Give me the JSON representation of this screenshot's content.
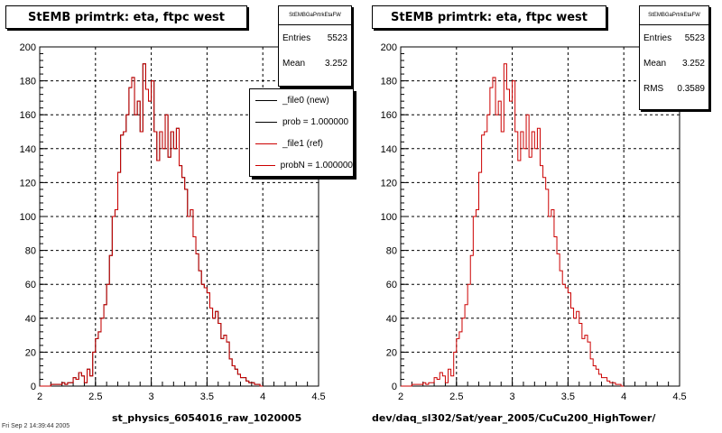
{
  "chart_data": [
    {
      "type": "histogram",
      "title": "StEMB primtrk: eta, ftpc west",
      "xlabel": "st_physics_6054016_raw_1020005",
      "xlim": [
        2,
        4.5
      ],
      "ylim": [
        0,
        200
      ],
      "xticks": [
        "2",
        "2.5",
        "3",
        "3.5",
        "4",
        "4.5"
      ],
      "yticks": [
        "0",
        "20",
        "40",
        "60",
        "80",
        "100",
        "120",
        "140",
        "160",
        "180",
        "200"
      ],
      "grid": true,
      "stats": {
        "name": "StEMBGaPrtrkEtaFW",
        "entries_label": "Entries",
        "entries": "5523",
        "mean_label": "Mean",
        "mean": "3.252"
      },
      "legend": [
        {
          "label": "_file0 (new)",
          "color": "#000000"
        },
        {
          "label": "prob = 1.000000",
          "color": "#000000"
        },
        {
          "label": "_file1 (ref)",
          "color": "#cc0000"
        },
        {
          "label": "probN = 1.000000",
          "color": "#cc0000"
        }
      ],
      "bin_start": 2.0,
      "bin_width": 0.025,
      "series": [
        {
          "name": "_file0 (new)",
          "color": "#000000",
          "values": [
            0,
            0,
            0,
            0,
            1,
            1,
            1,
            1,
            2,
            1,
            2,
            2,
            5,
            4,
            8,
            6,
            2,
            10,
            6,
            20,
            28,
            32,
            40,
            48,
            60,
            77,
            100,
            104,
            126,
            148,
            150,
            160,
            176,
            182,
            160,
            168,
            150,
            190,
            175,
            168,
            180,
            150,
            133,
            150,
            140,
            160,
            135,
            150,
            140,
            152,
            130,
            123,
            116,
            100,
            104,
            88,
            78,
            68,
            60,
            58,
            55,
            46,
            40,
            44,
            37,
            28,
            30,
            26,
            16,
            12,
            10,
            7,
            5,
            5,
            3,
            2,
            2,
            1,
            1,
            0
          ]
        },
        {
          "name": "_file1 (ref)",
          "color": "#cc0000",
          "values": [
            0,
            0,
            0,
            0,
            1,
            1,
            1,
            1,
            2,
            1,
            2,
            2,
            5,
            4,
            8,
            6,
            2,
            10,
            6,
            20,
            28,
            32,
            40,
            48,
            60,
            77,
            100,
            104,
            126,
            148,
            150,
            160,
            176,
            182,
            160,
            168,
            150,
            190,
            175,
            168,
            180,
            150,
            133,
            150,
            140,
            160,
            135,
            150,
            140,
            152,
            130,
            123,
            116,
            100,
            104,
            88,
            78,
            68,
            60,
            58,
            55,
            46,
            40,
            44,
            37,
            28,
            30,
            26,
            16,
            12,
            10,
            7,
            5,
            5,
            3,
            2,
            2,
            1,
            1,
            0
          ]
        }
      ]
    },
    {
      "type": "histogram",
      "title": "StEMB primtrk: eta, ftpc west",
      "xlabel": "dev/daq_sl302/Sat/year_2005/CuCu200_HighTower/",
      "xlim": [
        2,
        4.5
      ],
      "ylim": [
        0,
        200
      ],
      "xticks": [
        "2",
        "2.5",
        "3",
        "3.5",
        "4",
        "4.5"
      ],
      "yticks": [
        "0",
        "20",
        "40",
        "60",
        "80",
        "100",
        "120",
        "140",
        "160",
        "180",
        "200"
      ],
      "grid": true,
      "stats": {
        "name": "StEMBGaPrtrkEtaFW",
        "entries_label": "Entries",
        "entries": "5523",
        "mean_label": "Mean",
        "mean": "3.252",
        "rms_label": "RMS",
        "rms": "0.3589"
      },
      "bin_start": 2.0,
      "bin_width": 0.025,
      "series": [
        {
          "name": "ref",
          "color": "#cc0000",
          "values": [
            0,
            0,
            0,
            0,
            1,
            1,
            1,
            1,
            2,
            1,
            2,
            2,
            5,
            4,
            8,
            6,
            2,
            10,
            6,
            20,
            28,
            32,
            40,
            48,
            60,
            77,
            100,
            104,
            126,
            148,
            150,
            160,
            176,
            182,
            160,
            168,
            150,
            190,
            175,
            168,
            180,
            150,
            133,
            150,
            140,
            160,
            135,
            150,
            140,
            152,
            130,
            123,
            116,
            100,
            104,
            88,
            78,
            68,
            60,
            58,
            55,
            46,
            40,
            44,
            37,
            28,
            30,
            26,
            16,
            12,
            10,
            7,
            5,
            5,
            3,
            2,
            2,
            1,
            1,
            0
          ]
        }
      ]
    }
  ],
  "footer": "Fri Sep  2 14:39:44 2005"
}
